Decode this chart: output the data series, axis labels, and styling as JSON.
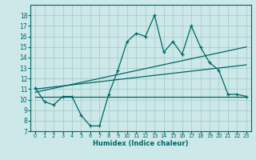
{
  "xlabel": "Humidex (Indice chaleur)",
  "bg_color": "#cce8e8",
  "grid_color": "#aacccc",
  "line_color": "#006666",
  "xlim": [
    -0.5,
    23.5
  ],
  "ylim": [
    7,
    19
  ],
  "xticks": [
    0,
    1,
    2,
    3,
    4,
    5,
    6,
    7,
    8,
    9,
    10,
    11,
    12,
    13,
    14,
    15,
    16,
    17,
    18,
    19,
    20,
    21,
    22,
    23
  ],
  "yticks": [
    7,
    8,
    9,
    10,
    11,
    12,
    13,
    14,
    15,
    16,
    17,
    18
  ],
  "main_line_x": [
    0,
    1,
    2,
    3,
    4,
    5,
    6,
    7,
    8,
    9,
    10,
    11,
    12,
    13,
    14,
    15,
    16,
    17,
    18,
    19,
    20,
    21,
    22,
    23
  ],
  "main_line_y": [
    11.1,
    9.8,
    9.5,
    10.3,
    10.3,
    8.5,
    7.5,
    7.5,
    10.5,
    12.8,
    15.5,
    16.3,
    16.0,
    18.0,
    14.5,
    15.5,
    14.3,
    17.0,
    15.0,
    13.5,
    12.8,
    10.5,
    10.5,
    10.3
  ],
  "trend1_x": [
    0,
    23
  ],
  "trend1_y": [
    11.0,
    13.3
  ],
  "trend2_x": [
    0,
    23
  ],
  "trend2_y": [
    10.3,
    10.3
  ],
  "trend3_x": [
    0,
    23
  ],
  "trend3_y": [
    10.7,
    15.0
  ]
}
